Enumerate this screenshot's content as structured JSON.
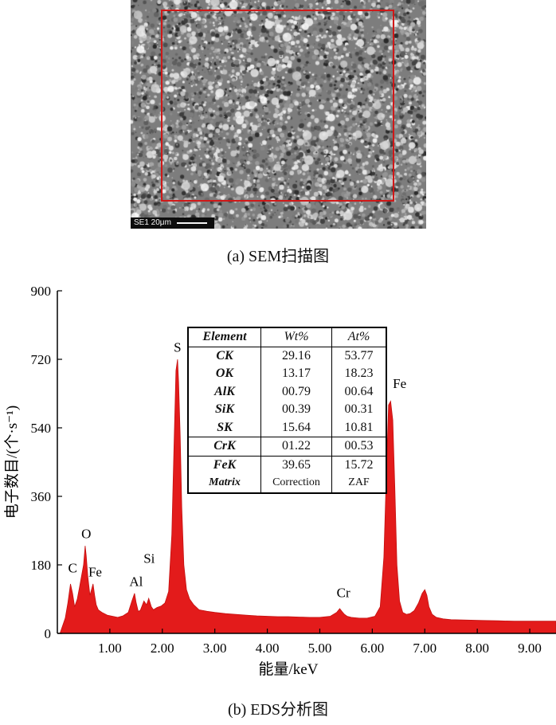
{
  "sem": {
    "scale_label": "SE1  20μm",
    "caption": "(a) SEM扫描图"
  },
  "eds": {
    "caption": "(b) EDS分析图",
    "table": {
      "header": [
        "Element",
        "Wt%",
        "At%"
      ],
      "rows": [
        [
          "CK",
          "29.16",
          "53.77"
        ],
        [
          "OK",
          "13.17",
          "18.23"
        ],
        [
          "AlK",
          "00.79",
          "00.64"
        ],
        [
          "SiK",
          "00.39",
          "00.31"
        ],
        [
          "SK",
          "15.64",
          "10.81"
        ],
        [
          "CrK",
          "01.22",
          "00.53"
        ],
        [
          "FeK",
          "39.65",
          "15.72"
        ],
        [
          "Matrix",
          "Correction",
          "ZAF"
        ]
      ]
    }
  },
  "chart_data": {
    "type": "area",
    "title": "",
    "xlabel": "能量/keV",
    "ylabel": "电子数目/(个·s⁻¹)",
    "xlim": [
      0.0,
      9.5
    ],
    "ylim": [
      0,
      900
    ],
    "x_ticks": [
      "1.00",
      "2.00",
      "3.00",
      "4.00",
      "5.00",
      "6.00",
      "7.00",
      "8.00",
      "9.00"
    ],
    "x_tick_values": [
      1,
      2,
      3,
      4,
      5,
      6,
      7,
      8,
      9
    ],
    "y_ticks": [
      "0",
      "180",
      "360",
      "540",
      "720",
      "900"
    ],
    "y_tick_values": [
      0,
      180,
      360,
      540,
      720,
      900
    ],
    "color": "#e31b1b",
    "series": [
      {
        "x": [
          0.05,
          0.15,
          0.2,
          0.25,
          0.29,
          0.33,
          0.38,
          0.42,
          0.46,
          0.5,
          0.53,
          0.55,
          0.58,
          0.62,
          0.66,
          0.68,
          0.71,
          0.74,
          0.78,
          0.85,
          0.95,
          1.05,
          1.15,
          1.25,
          1.35,
          1.42,
          1.47,
          1.5,
          1.54,
          1.58,
          1.65,
          1.7,
          1.74,
          1.79,
          1.83,
          1.9,
          1.98,
          2.05,
          2.12,
          2.18,
          2.22,
          2.26,
          2.29,
          2.31,
          2.34,
          2.37,
          2.41,
          2.46,
          2.52,
          2.6,
          2.7,
          2.85,
          3.0,
          3.2,
          3.4,
          3.6,
          3.8,
          4.0,
          4.2,
          4.4,
          4.6,
          4.8,
          5.0,
          5.2,
          5.32,
          5.38,
          5.42,
          5.47,
          5.52,
          5.6,
          5.75,
          5.9,
          6.05,
          6.15,
          6.22,
          6.27,
          6.31,
          6.35,
          6.39,
          6.43,
          6.47,
          6.52,
          6.58,
          6.65,
          6.72,
          6.8,
          6.88,
          6.95,
          7.0,
          7.04,
          7.08,
          7.14,
          7.22,
          7.35,
          7.5,
          7.8,
          8.1,
          8.4,
          8.7,
          9.0,
          9.3,
          9.5
        ],
        "y": [
          0,
          40,
          80,
          130,
          105,
          70,
          90,
          120,
          150,
          180,
          230,
          205,
          150,
          100,
          120,
          130,
          100,
          75,
          62,
          55,
          48,
          45,
          42,
          46,
          55,
          85,
          105,
          82,
          58,
          60,
          85,
          75,
          92,
          70,
          62,
          68,
          72,
          80,
          110,
          260,
          480,
          690,
          720,
          660,
          520,
          330,
          180,
          115,
          90,
          75,
          62,
          58,
          55,
          52,
          50,
          48,
          46,
          45,
          44,
          44,
          43,
          42,
          42,
          45,
          55,
          65,
          58,
          50,
          45,
          42,
          40,
          40,
          45,
          70,
          200,
          430,
          600,
          610,
          560,
          380,
          180,
          85,
          55,
          50,
          52,
          60,
          80,
          105,
          115,
          100,
          70,
          50,
          42,
          38,
          36,
          35,
          34,
          33,
          32,
          32,
          32,
          32
        ]
      }
    ],
    "peak_labels": [
      {
        "text": "C",
        "x": 0.29,
        "y": 160
      },
      {
        "text": "O",
        "x": 0.55,
        "y": 250
      },
      {
        "text": "Fe",
        "x": 0.72,
        "y": 150
      },
      {
        "text": "Al",
        "x": 1.5,
        "y": 125
      },
      {
        "text": "Si",
        "x": 1.75,
        "y": 185
      },
      {
        "text": "S",
        "x": 2.29,
        "y": 740
      },
      {
        "text": "Cr",
        "x": 5.45,
        "y": 95
      },
      {
        "text": "Fe",
        "x": 6.52,
        "y": 645
      }
    ]
  }
}
